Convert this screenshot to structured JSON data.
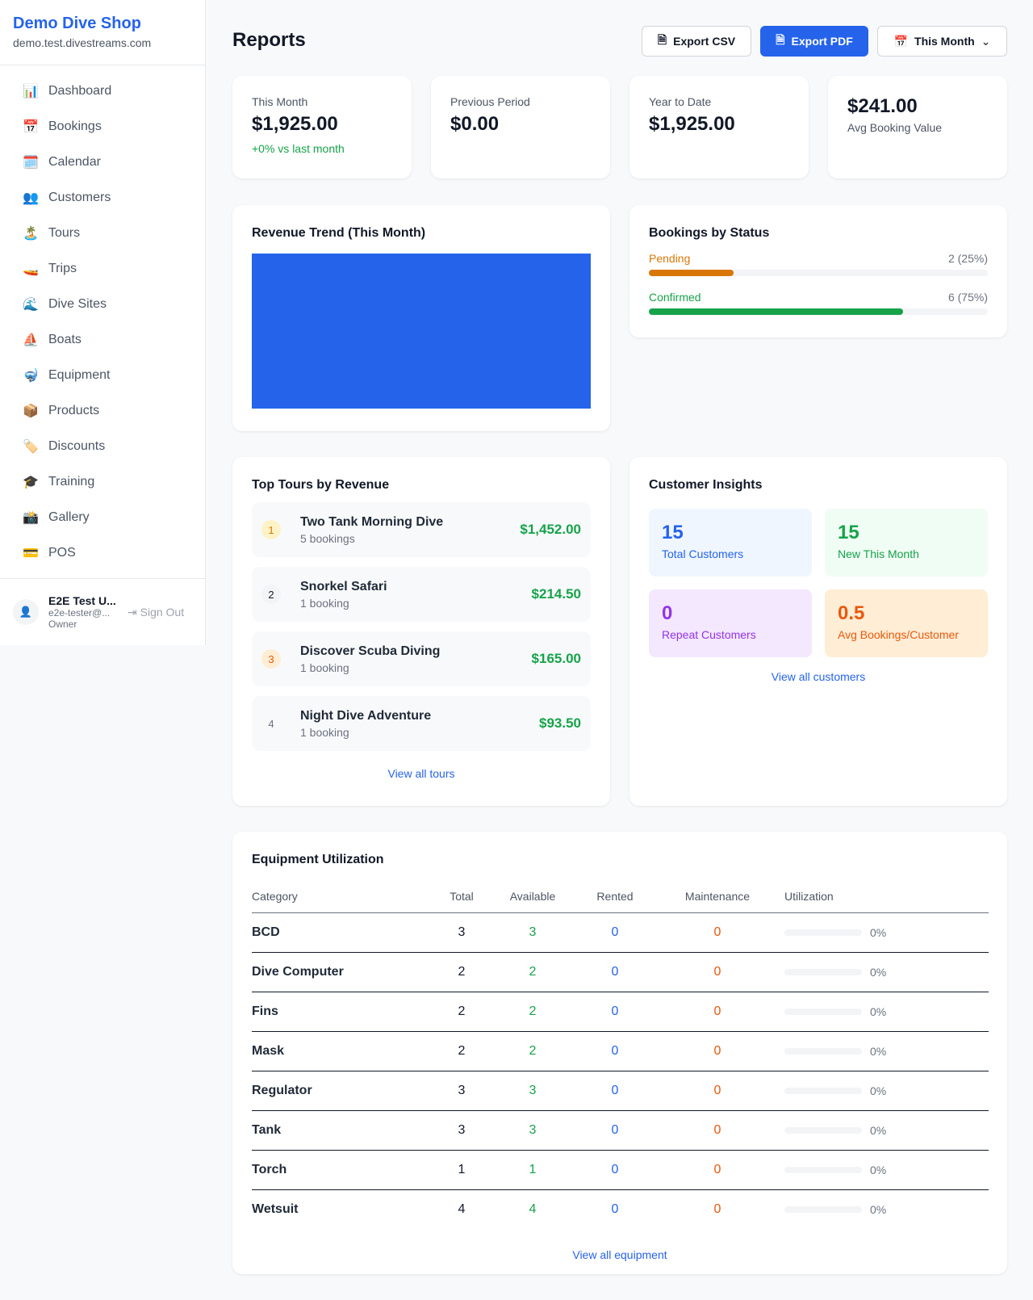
{
  "sidebar": {
    "brand": "Demo Dive Shop",
    "url": "demo.test.divestreams.com",
    "items": [
      {
        "icon": "📊",
        "label": "Dashboard"
      },
      {
        "icon": "📅",
        "label": "Bookings"
      },
      {
        "icon": "🗓️",
        "label": "Calendar"
      },
      {
        "icon": "👥",
        "label": "Customers"
      },
      {
        "icon": "🏝️",
        "label": "Tours"
      },
      {
        "icon": "🚤",
        "label": "Trips"
      },
      {
        "icon": "🌊",
        "label": "Dive Sites"
      },
      {
        "icon": "⛵",
        "label": "Boats"
      },
      {
        "icon": "🤿",
        "label": "Equipment"
      },
      {
        "icon": "📦",
        "label": "Products"
      },
      {
        "icon": "🏷️",
        "label": "Discounts"
      },
      {
        "icon": "🎓",
        "label": "Training"
      },
      {
        "icon": "📸",
        "label": "Gallery"
      },
      {
        "icon": "💳",
        "label": "POS"
      }
    ],
    "user": {
      "name": "E2E Test U...",
      "email": "e2e-tester@...",
      "role": "Owner",
      "signout": "Sign Out"
    }
  },
  "header": {
    "title": "Reports",
    "export_csv": "Export CSV",
    "export_pdf": "Export PDF",
    "period": "This Month"
  },
  "stats": [
    {
      "label": "This Month",
      "value": "$1,925.00",
      "sub": "+0% vs last month"
    },
    {
      "label": "Previous Period",
      "value": "$0.00"
    },
    {
      "label": "Year to Date",
      "value": "$1,925.00"
    },
    {
      "value": "$241.00",
      "label": "Avg Booking Value"
    }
  ],
  "revenue": {
    "title": "Revenue Trend (This Month)",
    "color": "#2563eb"
  },
  "bookings_status": {
    "title": "Bookings by Status",
    "items": [
      {
        "label": "Pending",
        "count": "2 (25%)",
        "percent": 25,
        "color": "#d97706"
      },
      {
        "label": "Confirmed",
        "count": "6 (75%)",
        "percent": 75,
        "color": "#16a34a"
      }
    ]
  },
  "top_tours": {
    "title": "Top Tours by Revenue",
    "link": "View all tours",
    "items": [
      {
        "rank": "1",
        "name": "Two Tank Morning Dive",
        "bookings": "5 bookings",
        "amount": "$1,452.00"
      },
      {
        "rank": "2",
        "name": "Snorkel Safari",
        "bookings": "1 booking",
        "amount": "$214.50"
      },
      {
        "rank": "3",
        "name": "Discover Scuba Diving",
        "bookings": "1 booking",
        "amount": "$165.00"
      },
      {
        "rank": "4",
        "name": "Night Dive Adventure",
        "bookings": "1 booking",
        "amount": "$93.50"
      }
    ]
  },
  "insights": {
    "title": "Customer Insights",
    "link": "View all customers",
    "tiles": [
      {
        "value": "15",
        "label": "Total Customers"
      },
      {
        "value": "15",
        "label": "New This Month"
      },
      {
        "value": "0",
        "label": "Repeat Customers"
      },
      {
        "value": "0.5",
        "label": "Avg Bookings/Customer"
      }
    ]
  },
  "equipment": {
    "title": "Equipment Utilization",
    "link": "View all equipment",
    "columns": [
      "Category",
      "Total",
      "Available",
      "Rented",
      "Maintenance",
      "Utilization"
    ],
    "rows": [
      [
        "BCD",
        "3",
        "3",
        "0",
        "0",
        "0%"
      ],
      [
        "Dive Computer",
        "2",
        "2",
        "0",
        "0",
        "0%"
      ],
      [
        "Fins",
        "2",
        "2",
        "0",
        "0",
        "0%"
      ],
      [
        "Mask",
        "2",
        "2",
        "0",
        "0",
        "0%"
      ],
      [
        "Regulator",
        "3",
        "3",
        "0",
        "0",
        "0%"
      ],
      [
        "Tank",
        "3",
        "3",
        "0",
        "0",
        "0%"
      ],
      [
        "Torch",
        "1",
        "1",
        "0",
        "0",
        "0%"
      ],
      [
        "Wetsuit",
        "4",
        "4",
        "0",
        "0",
        "0%"
      ]
    ]
  }
}
